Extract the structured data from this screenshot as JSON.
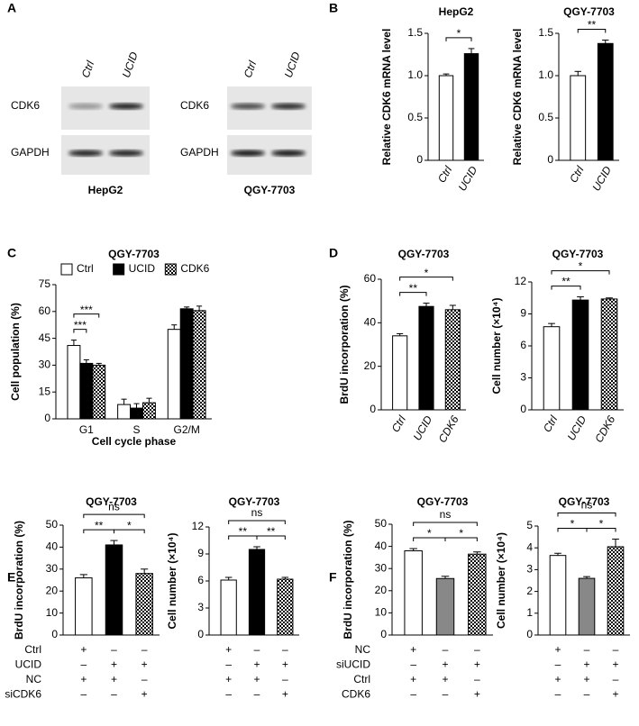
{
  "panel_labels": [
    "A",
    "B",
    "C",
    "D",
    "E",
    "F"
  ],
  "blots": [
    {
      "cell_line": "HepG2",
      "lanes": [
        "Ctrl",
        "UCID"
      ],
      "rows": [
        "CDK6",
        "GAPDH"
      ]
    },
    {
      "cell_line": "QGY-7703",
      "lanes": [
        "Ctrl",
        "UCID"
      ],
      "rows": [
        "CDK6",
        "GAPDH"
      ]
    }
  ],
  "chart_data": [
    {
      "type": "bar",
      "title": "HepG2",
      "ylabel": "Relative CDK6 mRNA level",
      "categories": [
        "Ctrl",
        "UCID"
      ],
      "values": [
        1.0,
        1.26
      ],
      "errors": [
        0.02,
        0.06
      ],
      "colors": [
        "#ffffff",
        "#000000"
      ],
      "ylim": [
        0,
        1.5
      ],
      "yticks": [
        0,
        0.5,
        {
          "value": 1,
          "label": "1.0"
        },
        1.5
      ],
      "significance": [
        {
          "from": 0,
          "to": 1,
          "label": "*"
        }
      ]
    },
    {
      "type": "bar",
      "title": "QGY-7703",
      "ylabel": "Relative CDK6 mRNA level",
      "categories": [
        "Ctrl",
        "UCID"
      ],
      "values": [
        1.0,
        1.38
      ],
      "errors": [
        0.05,
        0.04
      ],
      "colors": [
        "#ffffff",
        "#000000"
      ],
      "ylim": [
        0,
        1.5
      ],
      "yticks": [
        0,
        0.5,
        {
          "value": 1,
          "label": "1.0"
        },
        1.5
      ],
      "significance": [
        {
          "from": 0,
          "to": 1,
          "label": "**"
        }
      ]
    },
    {
      "type": "grouped-bar",
      "title": "QGY-7703",
      "ylabel": "Cell population (%)",
      "xlabel": "Cell cycle phase",
      "categories": [
        "G1",
        "S",
        "G2/M"
      ],
      "series": [
        {
          "name": "Ctrl",
          "color": "#ffffff",
          "values": [
            41,
            8,
            50
          ],
          "errors": [
            3,
            3,
            2.5
          ]
        },
        {
          "name": "UCID",
          "color": "#000000",
          "values": [
            31,
            6,
            61.5
          ],
          "errors": [
            2,
            2.5,
            1
          ]
        },
        {
          "name": "CDK6",
          "color": "checker",
          "values": [
            30,
            9,
            60.5
          ],
          "errors": [
            1,
            2.5,
            2.5
          ]
        }
      ],
      "ylim": [
        0,
        75
      ],
      "yticks": [
        0,
        15,
        30,
        45,
        60,
        75
      ],
      "significance": [
        {
          "category": 0,
          "from": 0,
          "to": 1,
          "label": "***"
        },
        {
          "category": 0,
          "from": 0,
          "to": 2,
          "label": "***"
        }
      ]
    },
    {
      "type": "bar",
      "title": "QGY-7703",
      "ylabel": "BrdU incorporation (%)",
      "categories": [
        "Ctrl",
        "UCID",
        "CDK6"
      ],
      "values": [
        34,
        47.5,
        46
      ],
      "errors": [
        1,
        1.5,
        2
      ],
      "colors": [
        "#ffffff",
        "#000000",
        "checker"
      ],
      "ylim": [
        0,
        60
      ],
      "yticks": [
        0,
        20,
        40,
        60
      ],
      "significance": [
        {
          "from": 0,
          "to": 1,
          "label": "**"
        },
        {
          "from": 0,
          "to": 2,
          "label": "*"
        }
      ]
    },
    {
      "type": "bar",
      "title": "QGY-7703",
      "ylabel": "Cell number (×10⁴)",
      "categories": [
        "Ctrl",
        "UCID",
        "CDK6"
      ],
      "values": [
        7.8,
        10.3,
        10.4
      ],
      "errors": [
        0.3,
        0.3,
        0.1
      ],
      "colors": [
        "#ffffff",
        "#000000",
        "checker"
      ],
      "ylim": [
        0,
        12
      ],
      "yticks": [
        0,
        3,
        6,
        9,
        12
      ],
      "significance": [
        {
          "from": 0,
          "to": 1,
          "label": "**"
        },
        {
          "from": 0,
          "to": 2,
          "label": "*"
        }
      ]
    },
    {
      "type": "bar",
      "title": "QGY-7703",
      "ylabel": "BrdU incorporation (%)",
      "categories": [
        null,
        null,
        null
      ],
      "values": [
        26,
        41,
        28
      ],
      "errors": [
        1.5,
        2,
        2
      ],
      "colors": [
        "#ffffff",
        "#000000",
        "checker"
      ],
      "ylim": [
        0,
        50
      ],
      "yticks": [
        0,
        10,
        20,
        30,
        40,
        50
      ],
      "significance": [
        {
          "from": 0,
          "to": 1,
          "label": "**"
        },
        {
          "from": 1,
          "to": 2,
          "label": "*"
        },
        {
          "from": 0,
          "to": 2,
          "label": "ns"
        }
      ],
      "conditions": [
        {
          "name": "Ctrl",
          "marks": [
            "+",
            "–",
            "–"
          ]
        },
        {
          "name": "UCID",
          "marks": [
            "–",
            "+",
            "+"
          ]
        },
        {
          "name": "NC",
          "marks": [
            "+",
            "+",
            "–"
          ]
        },
        {
          "name": "siCDK6",
          "marks": [
            "–",
            "–",
            "+"
          ]
        }
      ]
    },
    {
      "type": "bar",
      "title": "QGY-7703",
      "ylabel": "Cell number (×10⁴)",
      "categories": [
        null,
        null,
        null
      ],
      "values": [
        6.1,
        9.5,
        6.2
      ],
      "errors": [
        0.3,
        0.3,
        0.2
      ],
      "colors": [
        "#ffffff",
        "#000000",
        "checker"
      ],
      "ylim": [
        0,
        12
      ],
      "yticks": [
        0,
        3,
        6,
        9,
        12
      ],
      "significance": [
        {
          "from": 0,
          "to": 1,
          "label": "**"
        },
        {
          "from": 1,
          "to": 2,
          "label": "**"
        },
        {
          "from": 0,
          "to": 2,
          "label": "ns"
        }
      ],
      "conditions": [
        {
          "marks": [
            "+",
            "–",
            "–"
          ]
        },
        {
          "marks": [
            "–",
            "+",
            "+"
          ]
        },
        {
          "marks": [
            "+",
            "+",
            "–"
          ]
        },
        {
          "marks": [
            "–",
            "–",
            "+"
          ]
        }
      ]
    },
    {
      "type": "bar",
      "title": "QGY-7703",
      "ylabel": "BrdU incorporation (%)",
      "categories": [
        null,
        null,
        null
      ],
      "values": [
        38,
        25.5,
        36.5
      ],
      "errors": [
        1,
        1,
        1
      ],
      "colors": [
        "#ffffff",
        "#888888",
        "checker"
      ],
      "ylim": [
        0,
        50
      ],
      "yticks": [
        0,
        10,
        20,
        30,
        40,
        50
      ],
      "significance": [
        {
          "from": 0,
          "to": 1,
          "label": "*"
        },
        {
          "from": 1,
          "to": 2,
          "label": "*"
        },
        {
          "from": 0,
          "to": 2,
          "label": "ns"
        }
      ],
      "conditions": [
        {
          "name": "NC",
          "marks": [
            "+",
            "–",
            "–"
          ]
        },
        {
          "name": "siUCID",
          "marks": [
            "–",
            "+",
            "+"
          ]
        },
        {
          "name": "Ctrl",
          "marks": [
            "+",
            "+",
            "–"
          ]
        },
        {
          "name": "CDK6",
          "marks": [
            "–",
            "–",
            "+"
          ]
        }
      ]
    },
    {
      "type": "bar",
      "title": "QGY-7703",
      "ylabel": "Cell number (×10⁴)",
      "categories": [
        null,
        null,
        null
      ],
      "values": [
        3.65,
        2.6,
        4.05
      ],
      "errors": [
        0.1,
        0.08,
        0.35
      ],
      "colors": [
        "#ffffff",
        "#888888",
        "checker"
      ],
      "ylim": [
        0,
        5
      ],
      "yticks": [
        0,
        1,
        2,
        3,
        4,
        5
      ],
      "significance": [
        {
          "from": 0,
          "to": 1,
          "label": "*"
        },
        {
          "from": 1,
          "to": 2,
          "label": "*"
        },
        {
          "from": 0,
          "to": 2,
          "label": "ns"
        }
      ],
      "conditions": [
        {
          "marks": [
            "+",
            "–",
            "–"
          ]
        },
        {
          "marks": [
            "–",
            "+",
            "+"
          ]
        },
        {
          "marks": [
            "+",
            "+",
            "–"
          ]
        },
        {
          "marks": [
            "–",
            "–",
            "+"
          ]
        }
      ]
    }
  ]
}
